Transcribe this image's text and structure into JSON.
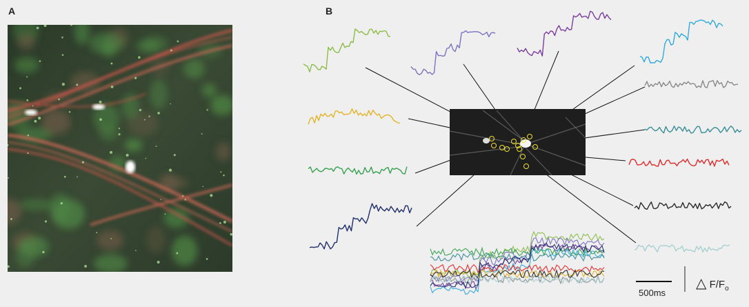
{
  "panels": {
    "a_label": "A",
    "b_label": "B"
  },
  "scale_bar": {
    "time_label": "500ms",
    "delta_symbol": "△",
    "ratio_label": "F/F",
    "ratio_subscript": "o"
  },
  "colors": {
    "background": "#efefef",
    "traces": [
      "#8cbc4a",
      "#7b72c0",
      "#7a3d9f",
      "#32a9dc",
      "#e2b52a",
      "#888888",
      "#35a04f",
      "#3a8d98",
      "#df2a2a",
      "#1f2d6b",
      "#2a2a2a",
      "#a9cfd1"
    ],
    "roi_marker": "#f0e030"
  },
  "traces": [
    {
      "id": "green-light",
      "color": "#8cbc4a",
      "shape": "step"
    },
    {
      "id": "lavender",
      "color": "#7b72c0",
      "shape": "step"
    },
    {
      "id": "purple",
      "color": "#7a3d9f",
      "shape": "step"
    },
    {
      "id": "blue",
      "color": "#32a9dc",
      "shape": "step"
    },
    {
      "id": "yellow",
      "color": "#e2b52a",
      "shape": "wave"
    },
    {
      "id": "gray",
      "color": "#888888",
      "shape": "flat"
    },
    {
      "id": "green",
      "color": "#35a04f",
      "shape": "flat"
    },
    {
      "id": "teal",
      "color": "#3a8d98",
      "shape": "flat"
    },
    {
      "id": "navy",
      "color": "#1f2d6b",
      "shape": "step"
    },
    {
      "id": "red",
      "color": "#df2a2a",
      "shape": "flat"
    },
    {
      "id": "black",
      "color": "#2a2a2a",
      "shape": "flat"
    },
    {
      "id": "light-blue",
      "color": "#a9cfd1",
      "shape": "flat"
    }
  ]
}
